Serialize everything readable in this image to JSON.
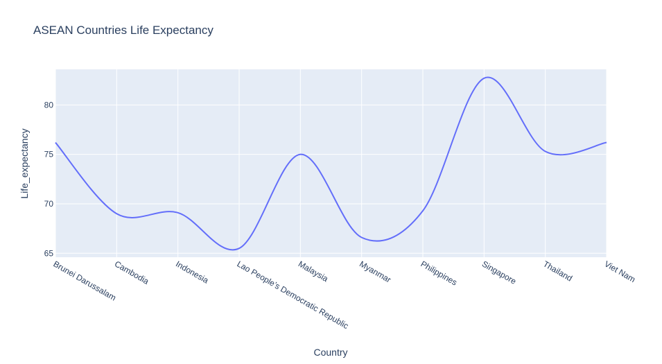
{
  "chart_data": {
    "type": "line",
    "title": "ASEAN Countries Life Expectancy",
    "xlabel": "Country",
    "ylabel": "Life_expectancy",
    "categories": [
      "Brunei Darussalam",
      "Cambodia",
      "Indonesia",
      "Lao People’s Democratic Republic",
      "Malaysia",
      "Myanmar",
      "Philippines",
      "Singapore",
      "Thailand",
      "Viet Nam"
    ],
    "series": [
      {
        "values": [
          76.2,
          69.0,
          69.1,
          65.5,
          75.0,
          66.6,
          69.3,
          82.7,
          75.3,
          76.2
        ]
      }
    ],
    "yticks": [
      65,
      70,
      75,
      80
    ],
    "ylim": [
      64.6,
      83.6
    ],
    "line_shape": "spline",
    "grid": true,
    "colors": {
      "line": "#636efa",
      "plot_bg": "#e5ecf6",
      "grid": "#ffffff",
      "text": "#2a3f5f"
    }
  }
}
